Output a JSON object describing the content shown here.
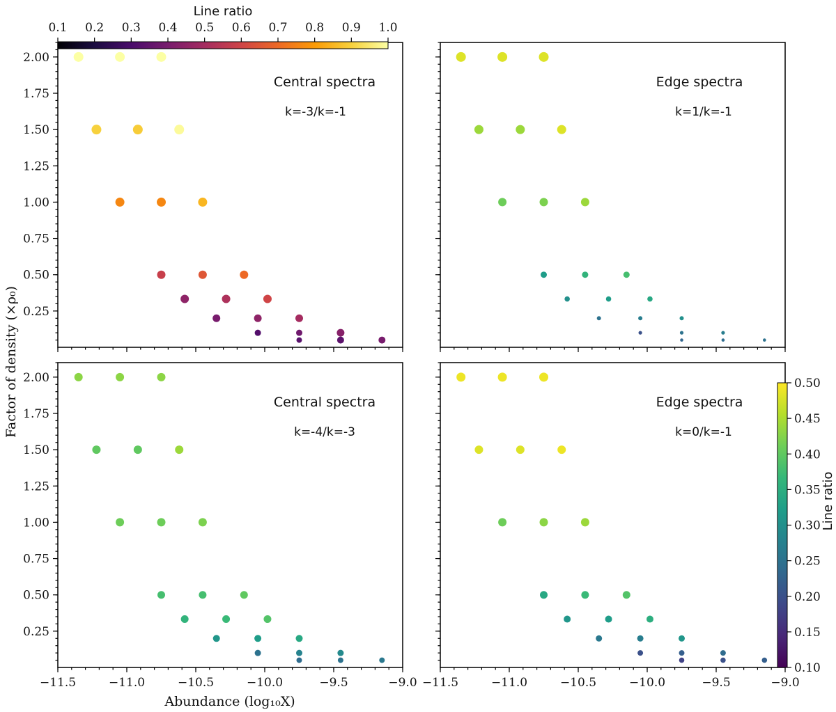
{
  "figure": {
    "xlabel": "Abundance (log₁₀X)",
    "ylabel": "Factor of density (×ρ₀)",
    "x_ticks": [
      -11.5,
      -11.0,
      -10.5,
      -10.0,
      -9.5,
      -9.0
    ],
    "x_tick_labels": [
      "−11.5",
      "−11.0",
      "−10.5",
      "−10.0",
      "−9.5",
      "−9.0"
    ],
    "y_ticks": [
      0.25,
      0.5,
      0.75,
      1.0,
      1.25,
      1.5,
      1.75,
      2.0
    ],
    "y_tick_labels": [
      "0.25",
      "0.50",
      "0.75",
      "1.00",
      "1.25",
      "1.50",
      "1.75",
      "2.00"
    ]
  },
  "colorbars": {
    "top": {
      "label": "Line ratio",
      "colormap": "inferno",
      "range": [
        0.1,
        1.0
      ],
      "ticks": [
        0.1,
        0.2,
        0.3,
        0.4,
        0.5,
        0.6,
        0.7,
        0.8,
        0.9,
        1.0
      ],
      "tick_labels": [
        "0.1",
        "0.2",
        "0.3",
        "0.4",
        "0.5",
        "0.6",
        "0.7",
        "0.8",
        "0.9",
        "1.0"
      ],
      "placement": "top, horizontal"
    },
    "right": {
      "label": "Line ratio",
      "colormap": "viridis",
      "range": [
        0.1,
        0.5
      ],
      "ticks": [
        0.1,
        0.15,
        0.2,
        0.25,
        0.3,
        0.35,
        0.4,
        0.45,
        0.5
      ],
      "tick_labels": [
        "0.10",
        "0.15",
        "0.20",
        "0.25",
        "0.30",
        "0.35",
        "0.40",
        "0.45",
        "0.50"
      ],
      "placement": "right, vertical"
    }
  },
  "chart_data": [
    {
      "type": "scatter",
      "panel": "top-left",
      "title": "Central spectra",
      "subtitle": "k=-3/k=-1",
      "colormap": "inferno",
      "xlim": [
        -11.5,
        -9.0
      ],
      "ylim": [
        0.0,
        2.1
      ],
      "points": [
        {
          "x": -11.35,
          "y": 2.0,
          "value": 1.0,
          "size": 7
        },
        {
          "x": -11.05,
          "y": 2.0,
          "value": 1.0,
          "size": 7
        },
        {
          "x": -10.75,
          "y": 2.0,
          "value": 1.0,
          "size": 7
        },
        {
          "x": -11.22,
          "y": 1.5,
          "value": 0.9,
          "size": 7
        },
        {
          "x": -10.92,
          "y": 1.5,
          "value": 0.89,
          "size": 7
        },
        {
          "x": -10.62,
          "y": 1.5,
          "value": 0.99,
          "size": 7
        },
        {
          "x": -11.05,
          "y": 1.0,
          "value": 0.76,
          "size": 6.5
        },
        {
          "x": -10.75,
          "y": 1.0,
          "value": 0.76,
          "size": 6.5
        },
        {
          "x": -10.45,
          "y": 1.0,
          "value": 0.85,
          "size": 6.5
        },
        {
          "x": -10.75,
          "y": 0.5,
          "value": 0.58,
          "size": 6
        },
        {
          "x": -10.45,
          "y": 0.5,
          "value": 0.65,
          "size": 6
        },
        {
          "x": -10.15,
          "y": 0.5,
          "value": 0.7,
          "size": 6
        },
        {
          "x": -10.58,
          "y": 0.333,
          "value": 0.45,
          "size": 6
        },
        {
          "x": -10.28,
          "y": 0.333,
          "value": 0.52,
          "size": 6
        },
        {
          "x": -9.98,
          "y": 0.333,
          "value": 0.6,
          "size": 6
        },
        {
          "x": -10.35,
          "y": 0.2,
          "value": 0.4,
          "size": 5.5
        },
        {
          "x": -10.05,
          "y": 0.2,
          "value": 0.45,
          "size": 5.5
        },
        {
          "x": -9.75,
          "y": 0.2,
          "value": 0.5,
          "size": 5.5
        },
        {
          "x": -10.05,
          "y": 0.1,
          "value": 0.32,
          "size": 4.5
        },
        {
          "x": -9.75,
          "y": 0.1,
          "value": 0.38,
          "size": 4.5
        },
        {
          "x": -9.45,
          "y": 0.1,
          "value": 0.43,
          "size": 5.5
        },
        {
          "x": -9.75,
          "y": 0.05,
          "value": 0.33,
          "size": 4
        },
        {
          "x": -9.45,
          "y": 0.05,
          "value": 0.34,
          "size": 5
        },
        {
          "x": -9.15,
          "y": 0.05,
          "value": 0.4,
          "size": 5
        }
      ]
    },
    {
      "type": "scatter",
      "panel": "top-right",
      "title": "Edge spectra",
      "subtitle": "k=1/k=-1",
      "colormap": "viridis",
      "xlim": [
        -11.5,
        -9.0
      ],
      "ylim": [
        0.0,
        2.1
      ],
      "points": [
        {
          "x": -11.35,
          "y": 2.0,
          "value": 0.48,
          "size": 7
        },
        {
          "x": -11.05,
          "y": 2.0,
          "value": 0.48,
          "size": 7
        },
        {
          "x": -10.75,
          "y": 2.0,
          "value": 0.48,
          "size": 7
        },
        {
          "x": -11.22,
          "y": 1.5,
          "value": 0.44,
          "size": 6.5
        },
        {
          "x": -10.92,
          "y": 1.5,
          "value": 0.44,
          "size": 6.5
        },
        {
          "x": -10.62,
          "y": 1.5,
          "value": 0.48,
          "size": 6.5
        },
        {
          "x": -11.05,
          "y": 1.0,
          "value": 0.41,
          "size": 6
        },
        {
          "x": -10.75,
          "y": 1.0,
          "value": 0.42,
          "size": 6
        },
        {
          "x": -10.45,
          "y": 1.0,
          "value": 0.44,
          "size": 6
        },
        {
          "x": -10.75,
          "y": 0.5,
          "value": 0.32,
          "size": 4.5
        },
        {
          "x": -10.45,
          "y": 0.5,
          "value": 0.36,
          "size": 4.5
        },
        {
          "x": -10.15,
          "y": 0.5,
          "value": 0.38,
          "size": 4.5
        },
        {
          "x": -10.58,
          "y": 0.333,
          "value": 0.3,
          "size": 3.8
        },
        {
          "x": -10.28,
          "y": 0.333,
          "value": 0.32,
          "size": 3.8
        },
        {
          "x": -9.98,
          "y": 0.333,
          "value": 0.34,
          "size": 3.8
        },
        {
          "x": -10.35,
          "y": 0.2,
          "value": 0.25,
          "size": 3
        },
        {
          "x": -10.05,
          "y": 0.2,
          "value": 0.27,
          "size": 3
        },
        {
          "x": -9.75,
          "y": 0.2,
          "value": 0.3,
          "size": 3
        },
        {
          "x": -10.05,
          "y": 0.1,
          "value": 0.2,
          "size": 2.6
        },
        {
          "x": -9.75,
          "y": 0.1,
          "value": 0.25,
          "size": 2.6
        },
        {
          "x": -9.45,
          "y": 0.1,
          "value": 0.27,
          "size": 2.6
        },
        {
          "x": -9.75,
          "y": 0.05,
          "value": 0.23,
          "size": 2.3
        },
        {
          "x": -9.45,
          "y": 0.05,
          "value": 0.24,
          "size": 2.3
        },
        {
          "x": -9.15,
          "y": 0.05,
          "value": 0.25,
          "size": 2.3
        }
      ]
    },
    {
      "type": "scatter",
      "panel": "bottom-left",
      "title": "Central spectra",
      "subtitle": "k=-4/k=-3",
      "colormap": "viridis",
      "xlim": [
        -11.5,
        -9.0
      ],
      "ylim": [
        0.0,
        2.1
      ],
      "points": [
        {
          "x": -11.35,
          "y": 2.0,
          "value": 0.43,
          "size": 6
        },
        {
          "x": -11.05,
          "y": 2.0,
          "value": 0.43,
          "size": 6
        },
        {
          "x": -10.75,
          "y": 2.0,
          "value": 0.43,
          "size": 6
        },
        {
          "x": -11.22,
          "y": 1.5,
          "value": 0.4,
          "size": 6
        },
        {
          "x": -10.92,
          "y": 1.5,
          "value": 0.4,
          "size": 6
        },
        {
          "x": -10.62,
          "y": 1.5,
          "value": 0.44,
          "size": 6
        },
        {
          "x": -11.05,
          "y": 1.0,
          "value": 0.41,
          "size": 6
        },
        {
          "x": -10.75,
          "y": 1.0,
          "value": 0.41,
          "size": 6
        },
        {
          "x": -10.45,
          "y": 1.0,
          "value": 0.42,
          "size": 6
        },
        {
          "x": -10.75,
          "y": 0.5,
          "value": 0.38,
          "size": 5.5
        },
        {
          "x": -10.45,
          "y": 0.5,
          "value": 0.38,
          "size": 5.5
        },
        {
          "x": -10.15,
          "y": 0.5,
          "value": 0.4,
          "size": 5.5
        },
        {
          "x": -10.58,
          "y": 0.333,
          "value": 0.36,
          "size": 5.5
        },
        {
          "x": -10.28,
          "y": 0.333,
          "value": 0.37,
          "size": 5.5
        },
        {
          "x": -9.98,
          "y": 0.333,
          "value": 0.39,
          "size": 5.5
        },
        {
          "x": -10.35,
          "y": 0.2,
          "value": 0.31,
          "size": 5
        },
        {
          "x": -10.05,
          "y": 0.2,
          "value": 0.32,
          "size": 5
        },
        {
          "x": -9.75,
          "y": 0.2,
          "value": 0.34,
          "size": 5
        },
        {
          "x": -10.05,
          "y": 0.1,
          "value": 0.25,
          "size": 4.5
        },
        {
          "x": -9.75,
          "y": 0.1,
          "value": 0.28,
          "size": 4.5
        },
        {
          "x": -9.45,
          "y": 0.1,
          "value": 0.29,
          "size": 4.5
        },
        {
          "x": -9.75,
          "y": 0.05,
          "value": 0.24,
          "size": 4
        },
        {
          "x": -9.45,
          "y": 0.05,
          "value": 0.25,
          "size": 4
        },
        {
          "x": -9.15,
          "y": 0.05,
          "value": 0.26,
          "size": 4
        }
      ]
    },
    {
      "type": "scatter",
      "panel": "bottom-right",
      "title": "Edge spectra",
      "subtitle": "k=0/k=-1",
      "colormap": "viridis",
      "xlim": [
        -11.5,
        -9.0
      ],
      "ylim": [
        0.0,
        2.1
      ],
      "points": [
        {
          "x": -11.35,
          "y": 2.0,
          "value": 0.49,
          "size": 6.5
        },
        {
          "x": -11.05,
          "y": 2.0,
          "value": 0.49,
          "size": 6.5
        },
        {
          "x": -10.75,
          "y": 2.0,
          "value": 0.49,
          "size": 6.5
        },
        {
          "x": -11.22,
          "y": 1.5,
          "value": 0.48,
          "size": 6
        },
        {
          "x": -10.92,
          "y": 1.5,
          "value": 0.48,
          "size": 6
        },
        {
          "x": -10.62,
          "y": 1.5,
          "value": 0.49,
          "size": 6
        },
        {
          "x": -11.05,
          "y": 1.0,
          "value": 0.41,
          "size": 6
        },
        {
          "x": -10.75,
          "y": 1.0,
          "value": 0.43,
          "size": 6
        },
        {
          "x": -10.45,
          "y": 1.0,
          "value": 0.44,
          "size": 6
        },
        {
          "x": -10.75,
          "y": 0.5,
          "value": 0.34,
          "size": 5.5
        },
        {
          "x": -10.45,
          "y": 0.5,
          "value": 0.37,
          "size": 5.5
        },
        {
          "x": -10.15,
          "y": 0.5,
          "value": 0.39,
          "size": 5.5
        },
        {
          "x": -10.58,
          "y": 0.333,
          "value": 0.31,
          "size": 5
        },
        {
          "x": -10.28,
          "y": 0.333,
          "value": 0.32,
          "size": 5
        },
        {
          "x": -9.98,
          "y": 0.333,
          "value": 0.35,
          "size": 5
        },
        {
          "x": -10.35,
          "y": 0.2,
          "value": 0.26,
          "size": 4.5
        },
        {
          "x": -10.05,
          "y": 0.2,
          "value": 0.27,
          "size": 4.5
        },
        {
          "x": -9.75,
          "y": 0.2,
          "value": 0.31,
          "size": 4.5
        },
        {
          "x": -10.05,
          "y": 0.1,
          "value": 0.2,
          "size": 4
        },
        {
          "x": -9.75,
          "y": 0.1,
          "value": 0.22,
          "size": 4
        },
        {
          "x": -9.45,
          "y": 0.1,
          "value": 0.24,
          "size": 4
        },
        {
          "x": -9.75,
          "y": 0.05,
          "value": 0.18,
          "size": 3.8
        },
        {
          "x": -9.45,
          "y": 0.05,
          "value": 0.2,
          "size": 3.8
        },
        {
          "x": -9.15,
          "y": 0.05,
          "value": 0.22,
          "size": 3.8
        }
      ]
    }
  ]
}
